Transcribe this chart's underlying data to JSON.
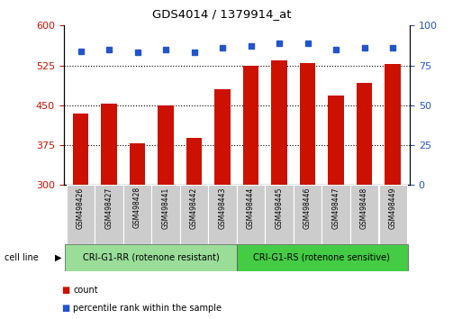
{
  "title": "GDS4014 / 1379914_at",
  "categories": [
    "GSM498426",
    "GSM498427",
    "GSM498428",
    "GSM498441",
    "GSM498442",
    "GSM498443",
    "GSM498444",
    "GSM498445",
    "GSM498446",
    "GSM498447",
    "GSM498448",
    "GSM498449"
  ],
  "bar_values": [
    435,
    453,
    378,
    449,
    389,
    480,
    525,
    535,
    530,
    468,
    492,
    527
  ],
  "percentile_values": [
    84,
    85,
    83,
    85,
    83,
    86,
    87,
    89,
    89,
    85,
    86,
    86
  ],
  "group1_label": "CRI-G1-RR (rotenone resistant)",
  "group2_label": "CRI-G1-RS (rotenone sensitive)",
  "group1_count": 6,
  "group2_count": 6,
  "ymin": 300,
  "ymax": 600,
  "yticks": [
    300,
    375,
    450,
    525,
    600
  ],
  "y2min": 0,
  "y2max": 100,
  "y2ticks": [
    0,
    25,
    50,
    75,
    100
  ],
  "bar_color": "#cc1100",
  "dot_color": "#2255cc",
  "group1_bg": "#99dd99",
  "group2_bg": "#44cc44",
  "tick_bg": "#cccccc",
  "legend_count_label": "count",
  "legend_pct_label": "percentile rank within the sample",
  "cell_line_label": "cell line"
}
